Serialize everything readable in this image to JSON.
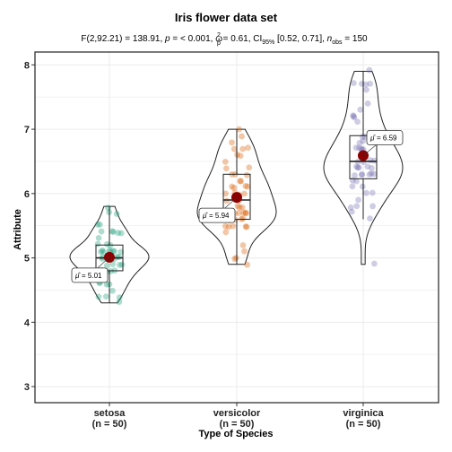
{
  "chart_data": {
    "type": "violin-box-scatter",
    "title": "Iris flower data set",
    "subtitle": {
      "pre": "F(2,92.21) = 138.91, ",
      "p_label": "p",
      "p_text": " = < 0.001, ",
      "omega_base": "ω",
      "omega_sub": "p",
      "omega_sup": "2",
      "omega_text": " = 0.61, CI",
      "ci_sub": "95%",
      "ci_text": " [0.52, 0.71], ",
      "n_label": "n",
      "n_sub": "obs",
      "n_text": " = 150"
    },
    "xlabel": "Type of Species",
    "ylabel": "Attribute",
    "ylim": [
      2.75,
      8.2
    ],
    "yticks": [
      "3",
      "4",
      "5",
      "6",
      "7",
      "8"
    ],
    "grid": true,
    "groups": [
      {
        "name": "setosa",
        "n_label": "(n = 50)",
        "color": "#1b9e77",
        "mean": 5.01,
        "mean_label": "= 5.01",
        "box": {
          "q1": 4.8,
          "median": 5.0,
          "q3": 5.2,
          "whisker_low": 4.3,
          "whisker_high": 5.8
        },
        "violin_min": 4.3,
        "violin_max": 5.8,
        "points": [
          4.3,
          4.4,
          4.4,
          4.4,
          4.5,
          4.6,
          4.6,
          4.6,
          4.6,
          4.7,
          4.7,
          4.8,
          4.8,
          4.8,
          4.8,
          4.8,
          4.9,
          4.9,
          4.9,
          4.9,
          5.0,
          5.0,
          5.0,
          5.0,
          5.0,
          5.0,
          5.0,
          5.0,
          5.1,
          5.1,
          5.1,
          5.1,
          5.1,
          5.1,
          5.1,
          5.1,
          5.2,
          5.2,
          5.2,
          5.3,
          5.4,
          5.4,
          5.4,
          5.4,
          5.4,
          5.5,
          5.5,
          5.7,
          5.7,
          5.8
        ]
      },
      {
        "name": "versicolor",
        "n_label": "(n = 50)",
        "color": "#d95f02",
        "mean": 5.94,
        "mean_label": "= 5.94",
        "box": {
          "q1": 5.6,
          "median": 5.9,
          "q3": 6.3,
          "whisker_low": 4.9,
          "whisker_high": 7.0
        },
        "violin_min": 4.9,
        "violin_max": 7.0,
        "points": [
          4.9,
          5.0,
          5.0,
          5.1,
          5.2,
          5.4,
          5.5,
          5.5,
          5.5,
          5.5,
          5.5,
          5.6,
          5.6,
          5.6,
          5.6,
          5.6,
          5.7,
          5.7,
          5.7,
          5.7,
          5.7,
          5.8,
          5.8,
          5.8,
          5.9,
          5.9,
          6.0,
          6.0,
          6.0,
          6.0,
          6.1,
          6.1,
          6.1,
          6.1,
          6.2,
          6.2,
          6.3,
          6.3,
          6.3,
          6.4,
          6.4,
          6.5,
          6.6,
          6.6,
          6.7,
          6.7,
          6.7,
          6.8,
          6.9,
          7.0
        ]
      },
      {
        "name": "virginica",
        "n_label": "(n = 50)",
        "color": "#7570b3",
        "mean": 6.59,
        "mean_label": "= 6.59",
        "box": {
          "q1": 6.23,
          "median": 6.5,
          "q3": 6.9,
          "whisker_low": 5.6,
          "whisker_high": 7.9
        },
        "violin_min": 4.9,
        "violin_max": 7.9,
        "points": [
          4.9,
          5.6,
          5.7,
          5.8,
          5.8,
          5.8,
          5.9,
          6.0,
          6.0,
          6.1,
          6.1,
          6.2,
          6.2,
          6.3,
          6.3,
          6.3,
          6.3,
          6.3,
          6.3,
          6.4,
          6.4,
          6.4,
          6.4,
          6.4,
          6.5,
          6.5,
          6.5,
          6.5,
          6.7,
          6.7,
          6.7,
          6.7,
          6.7,
          6.8,
          6.8,
          6.9,
          6.9,
          6.9,
          7.1,
          7.2,
          7.2,
          7.2,
          7.3,
          7.4,
          7.6,
          7.7,
          7.7,
          7.7,
          7.7,
          7.9
        ]
      }
    ]
  }
}
